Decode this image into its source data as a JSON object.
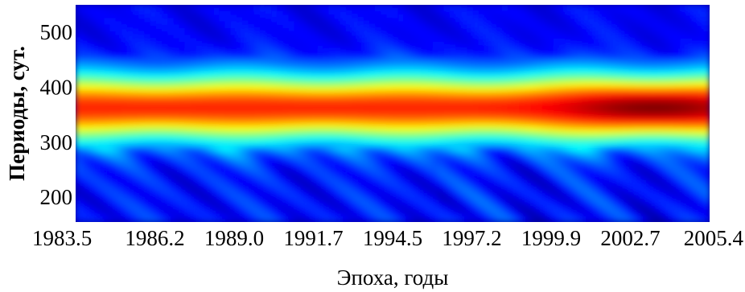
{
  "chart_data": {
    "type": "heatmap",
    "title": "",
    "xlabel": "Эпоха, годы",
    "ylabel": "Периоды, сут.",
    "xlim": [
      1983.5,
      2005.4
    ],
    "ylim": [
      155,
      550
    ],
    "x_ticks": [
      "1983.5",
      "1986.2",
      "1989.0",
      "1991.7",
      "1994.5",
      "1997.2",
      "1999.9",
      "2002.7",
      "2005.4"
    ],
    "y_ticks": [
      200,
      300,
      400,
      500
    ],
    "colormap": "jet",
    "grid": false,
    "ridge": {
      "center_period": 362,
      "half_width": 55,
      "peak_epoch": 2003.5,
      "peak_intensity": 1.0,
      "base_intensity": 0.84,
      "low_period_variation": "patchy below 280 days after 1996"
    }
  }
}
